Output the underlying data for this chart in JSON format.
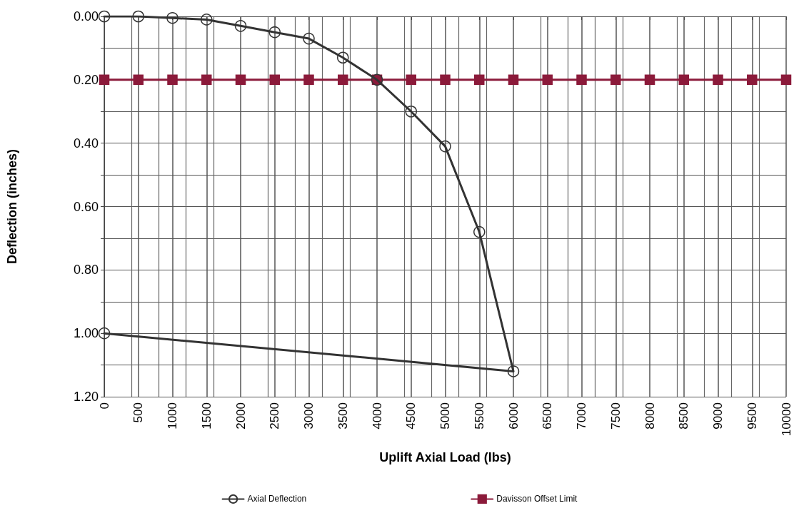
{
  "chart_data": {
    "type": "line",
    "xlabel": "Uplift Axial Load (lbs)",
    "ylabel": "Deflection (inches)",
    "xlim": [
      0,
      10000
    ],
    "xticks": [
      0,
      500,
      1000,
      1500,
      2000,
      2500,
      3000,
      3500,
      4000,
      4500,
      5000,
      5500,
      6000,
      6500,
      7000,
      7500,
      8000,
      8500,
      9000,
      9500,
      10000
    ],
    "ylim": [
      1.2,
      0
    ],
    "yticks": [
      {
        "value": 0,
        "label": "0.00"
      },
      {
        "value": 0.1,
        "label": null
      },
      {
        "value": 0.2,
        "label": "0.20"
      },
      {
        "value": 0.3,
        "label": null
      },
      {
        "value": 0.4,
        "label": "0.40"
      },
      {
        "value": 0.5,
        "label": null
      },
      {
        "value": 0.6,
        "label": "0.60"
      },
      {
        "value": 0.7,
        "label": null
      },
      {
        "value": 0.8,
        "label": "0.80"
      },
      {
        "value": 0.9,
        "label": null
      },
      {
        "value": 1.0,
        "label": "1.00"
      },
      {
        "value": 1.1,
        "label": null
      },
      {
        "value": 1.2,
        "label": "1.20"
      }
    ],
    "grid": true,
    "legend": "bottom",
    "series": [
      {
        "name": "Axial Deflection",
        "color": "#333333",
        "marker": "circle",
        "x": [
          0,
          500,
          1000,
          1500,
          2000,
          2500,
          3000,
          3500,
          4000,
          4500,
          5000,
          5500,
          6000,
          0
        ],
        "values": [
          0,
          0,
          0.005,
          0.01,
          0.03,
          0.05,
          0.07,
          0.13,
          0.2,
          0.3,
          0.41,
          0.68,
          1.12,
          1.0
        ]
      },
      {
        "name": "Davisson Offset Limit",
        "color": "#8b1a3a",
        "marker": "square",
        "x": [
          0,
          500,
          1000,
          1500,
          2000,
          2500,
          3000,
          3500,
          4000,
          4500,
          5000,
          5500,
          6000,
          6500,
          7000,
          7500,
          8000,
          8500,
          9000,
          9500,
          10000
        ],
        "values": [
          0.2,
          0.2,
          0.2,
          0.2,
          0.2,
          0.2,
          0.2,
          0.2,
          0.2,
          0.2,
          0.2,
          0.2,
          0.2,
          0.2,
          0.2,
          0.2,
          0.2,
          0.2,
          0.2,
          0.2,
          0.2
        ]
      }
    ]
  }
}
